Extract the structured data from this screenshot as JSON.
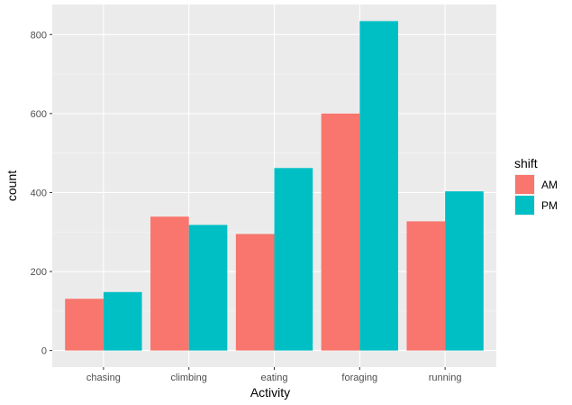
{
  "chart_data": {
    "type": "bar",
    "categories": [
      "chasing",
      "climbing",
      "eating",
      "foraging",
      "running"
    ],
    "series": [
      {
        "name": "AM",
        "color": "#F8766D",
        "values": [
          131,
          339,
          295,
          600,
          327
        ]
      },
      {
        "name": "PM",
        "color": "#00BFC4",
        "values": [
          148,
          318,
          462,
          834,
          403
        ]
      }
    ],
    "xlabel": "Activity",
    "ylabel": "count",
    "yticks": [
      0,
      200,
      400,
      600,
      800
    ],
    "ylim": [
      -42,
      876
    ],
    "grid": true,
    "panel_background": "#EBEBEB",
    "legend": {
      "title": "shift",
      "position": "right"
    }
  }
}
